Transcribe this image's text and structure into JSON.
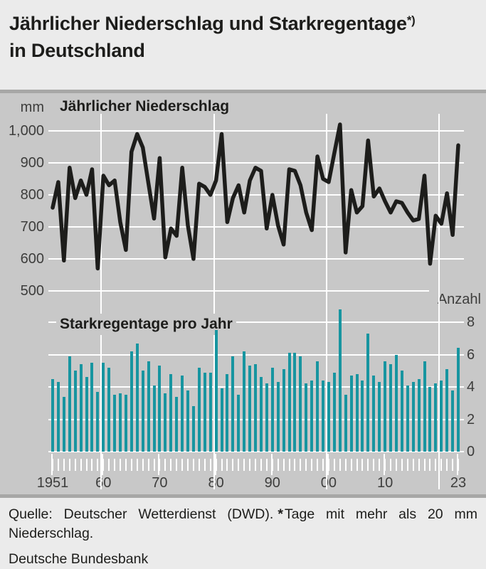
{
  "header": {
    "line1": "Jährlicher Niederschlag und Starkregentage",
    "footnote_marker": "*)",
    "line2": "in Deutschland"
  },
  "colors": {
    "page_background": "#ebebeb",
    "chart_background": "#c8c8c8",
    "divider_strip": "#a7a7a6",
    "gridline": "#ffffff",
    "line_series": "#1d1d1b",
    "bar_series": "#1795a0",
    "axis_text": "#3d3d3c",
    "title_text": "#1d1d1b"
  },
  "chart_data": [
    {
      "type": "line",
      "title": "Jährlicher Niederschlag",
      "unit": "mm",
      "ylabel": "mm",
      "ylim": [
        500,
        1050
      ],
      "y_tick_labels": [
        "1,000",
        "900",
        "800",
        "700",
        "600",
        "500"
      ],
      "y_tick_values": [
        1000,
        900,
        800,
        700,
        600,
        500
      ],
      "years_start": 1951,
      "years_end": 2023,
      "grid": "on",
      "values": [
        760,
        840,
        595,
        885,
        790,
        845,
        800,
        880,
        570,
        860,
        830,
        845,
        715,
        628,
        935,
        990,
        948,
        836,
        726,
        915,
        605,
        695,
        672,
        885,
        705,
        600,
        835,
        825,
        800,
        845,
        990,
        715,
        790,
        830,
        745,
        845,
        885,
        875,
        695,
        800,
        705,
        645,
        880,
        875,
        830,
        745,
        690,
        920,
        850,
        840,
        930,
        1020,
        620,
        815,
        745,
        765,
        970,
        795,
        820,
        780,
        745,
        780,
        775,
        745,
        720,
        725,
        860,
        585,
        735,
        710,
        805,
        675,
        955
      ]
    },
    {
      "type": "bar",
      "title": "Starkregentage pro Jahr",
      "unit": "Anzahl",
      "ylabel": "Anzahl",
      "ylim": [
        0,
        8
      ],
      "y_tick_labels": [
        "8",
        "6",
        "4",
        "2",
        "0"
      ],
      "y_tick_values": [
        8,
        6,
        4,
        2,
        0
      ],
      "years_start": 1951,
      "years_end": 2023,
      "grid": "on",
      "values": [
        4.5,
        4.3,
        3.4,
        5.9,
        5.0,
        5.4,
        4.6,
        5.5,
        3.7,
        5.5,
        5.2,
        3.5,
        3.6,
        3.5,
        6.2,
        6.7,
        5.0,
        5.6,
        4.1,
        5.3,
        3.6,
        4.8,
        3.4,
        4.7,
        3.8,
        2.8,
        5.2,
        4.9,
        4.9,
        7.5,
        3.9,
        4.8,
        5.9,
        3.5,
        6.2,
        5.3,
        5.4,
        4.6,
        4.2,
        5.2,
        4.3,
        5.1,
        6.1,
        6.1,
        5.9,
        4.2,
        4.4,
        5.6,
        4.4,
        4.3,
        4.9,
        8.8,
        3.5,
        4.7,
        4.8,
        4.4,
        7.3,
        4.7,
        4.3,
        5.6,
        5.4,
        6.0,
        5.0,
        4.1,
        4.3,
        4.5,
        5.6,
        4.0,
        4.2,
        4.4,
        5.1,
        3.8,
        6.4
      ]
    }
  ],
  "x_axis": {
    "tick_labels": [
      "1951",
      "60",
      "70",
      "80",
      "90",
      "00",
      "10",
      "23"
    ],
    "tick_years": [
      1951,
      1960,
      1970,
      1980,
      1990,
      2000,
      2010,
      2023
    ],
    "gridline_years": [
      1960,
      1980,
      2000,
      2020
    ]
  },
  "footer": {
    "source": "Quelle: Deutscher Wetterdienst (DWD).",
    "footnote_marker": "*",
    "footnote_text": "Tage mit mehr als 20 mm Niederschlag.",
    "bank": "Deutsche Bundesbank"
  }
}
